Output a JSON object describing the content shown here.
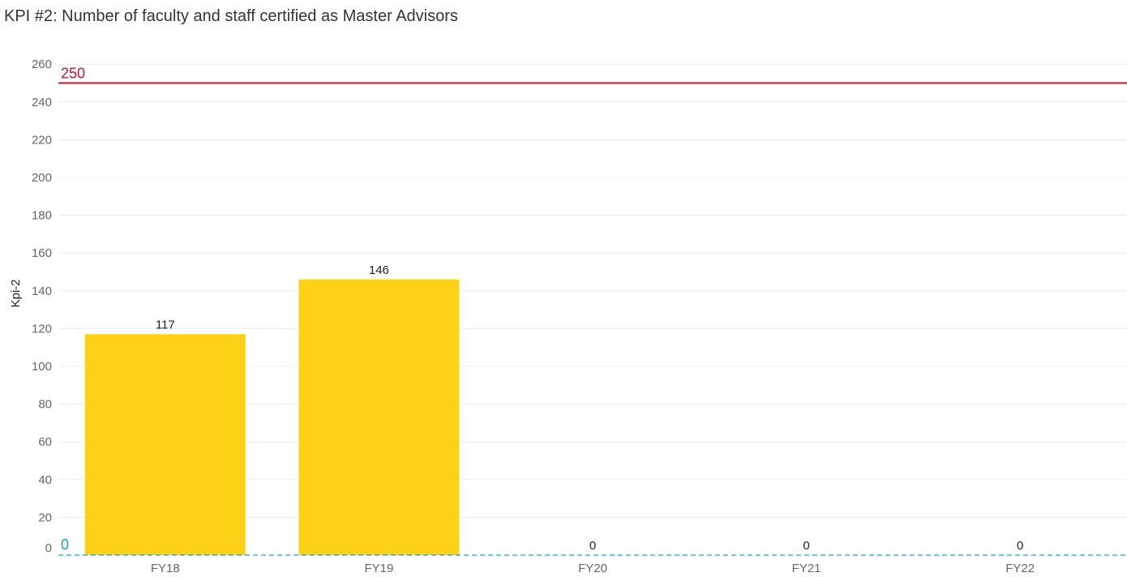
{
  "chart_data": {
    "type": "bar",
    "title": "KPI #2: Number of faculty and staff certified as Master Advisors",
    "xlabel": "",
    "ylabel": "Kpi-2",
    "categories": [
      "FY18",
      "FY19",
      "FY20",
      "FY21",
      "FY22"
    ],
    "values": [
      117,
      146,
      0,
      0,
      0
    ],
    "data_labels": [
      "117",
      "146",
      "0",
      "0",
      "0"
    ],
    "ylim": [
      0,
      265
    ],
    "yticks": [
      0,
      20,
      40,
      60,
      80,
      100,
      120,
      140,
      160,
      180,
      200,
      220,
      240,
      260
    ],
    "grid": true,
    "legend": "none",
    "reference_lines": [
      {
        "value": 250,
        "label": "250",
        "color": "#c8102e",
        "style": "solid"
      },
      {
        "value": 0,
        "label": "0",
        "color": "#1a9fc7",
        "style": "dashed"
      }
    ],
    "colors": {
      "bar": "#fcd116",
      "grid": "#ececec",
      "target": "#c8102e",
      "baseline": "#1a9fc7"
    }
  }
}
